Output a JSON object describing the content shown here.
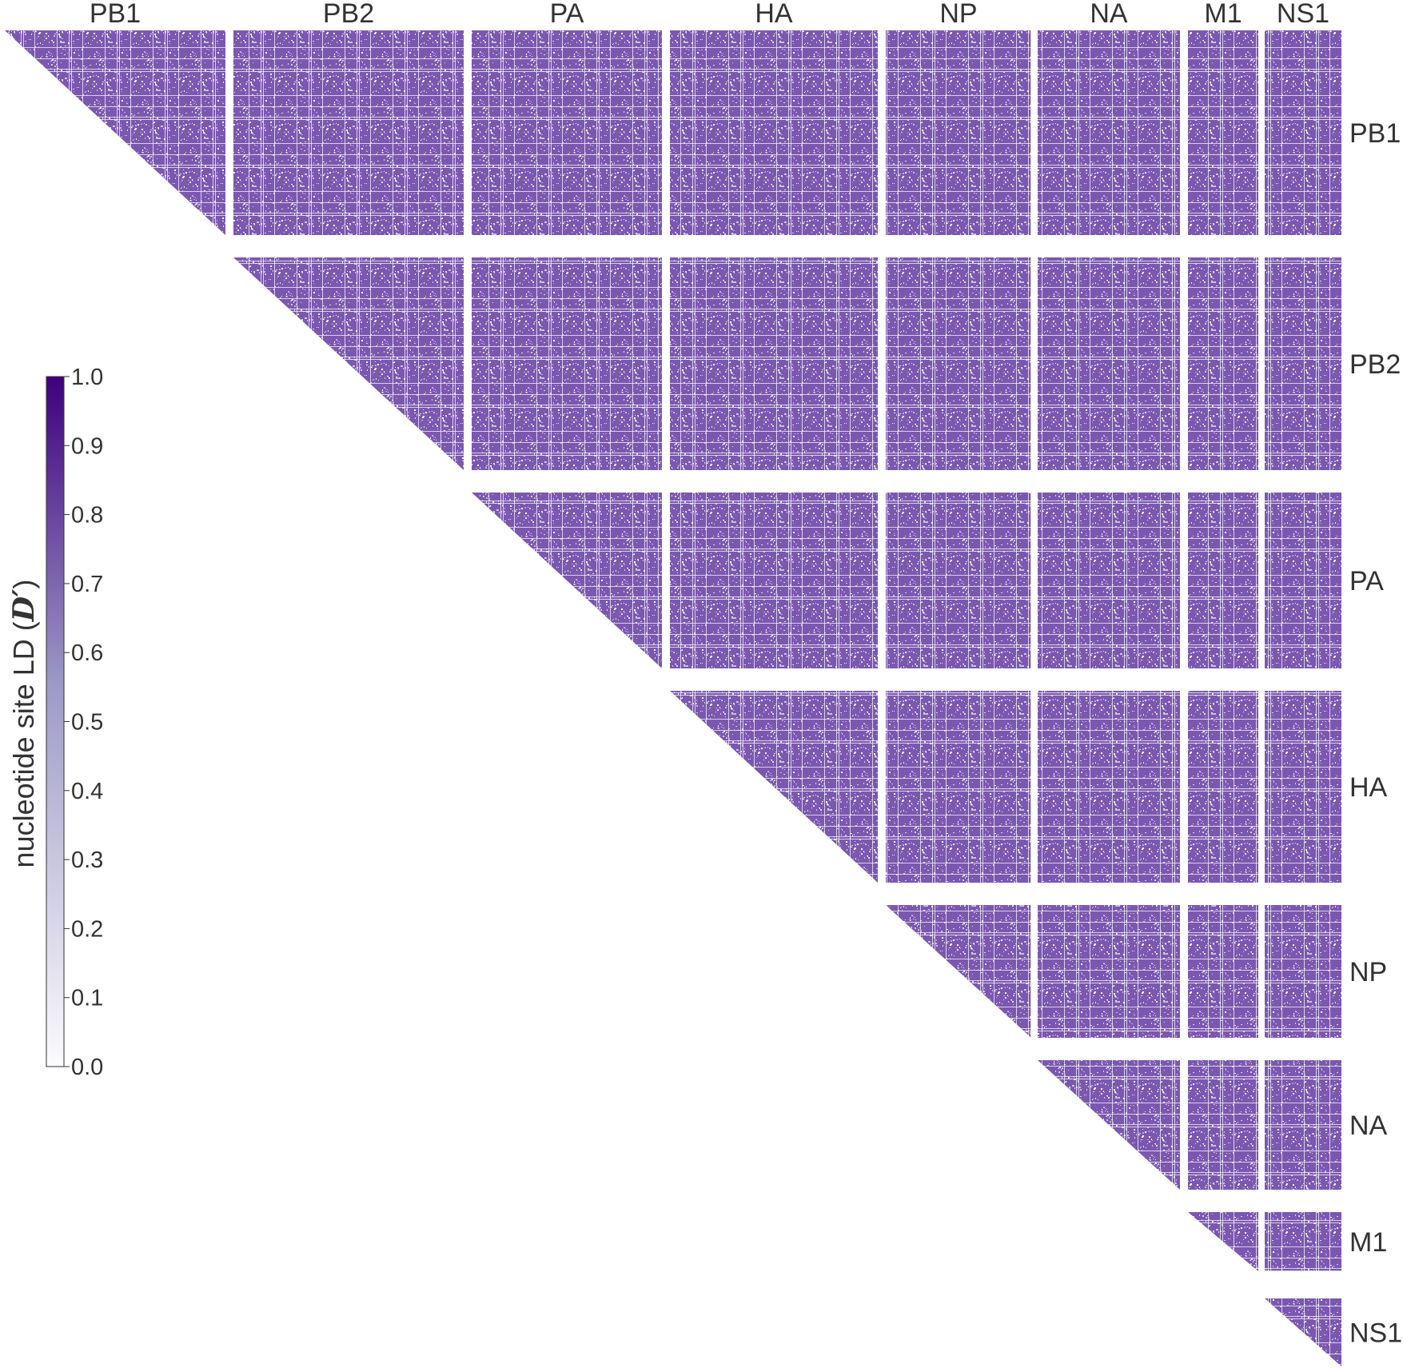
{
  "chart_data": {
    "type": "heatmap",
    "layout": "upper-triangular block matrix",
    "segments": [
      "PB1",
      "PB2",
      "PA",
      "HA",
      "NP",
      "NA",
      "M1",
      "NS1"
    ],
    "colorbar": {
      "label": "nucleotide site LD (",
      "label_symbol": "D′",
      "label_close": ")",
      "range": [
        0.0,
        1.0
      ],
      "ticks": [
        "0.0",
        "0.1",
        "0.2",
        "0.3",
        "0.4",
        "0.5",
        "0.6",
        "0.7",
        "0.8",
        "0.9",
        "1.0"
      ],
      "colormap": "Purples",
      "colors": {
        "low": "#fcfbfd",
        "mid": "#9e9ac8",
        "high": "#3f007d"
      }
    },
    "cell_color": "#7b58b0",
    "typical_value": 0.75,
    "grid": false
  }
}
